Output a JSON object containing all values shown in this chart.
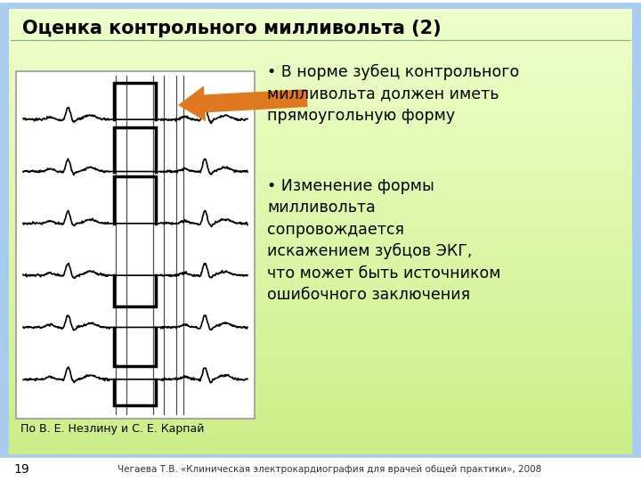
{
  "title": "Оценка контрольного милливольта (2)",
  "bullet1_text": "В норме зубец контрольного\nмилливольта должен иметь\nпрямоугольную форму",
  "bullet2_text": "Изменение формы\nмилливольта\nсопровождается\nискажением зубцов ЭКГ,\nчто может быть источником\nошибочного заключения",
  "caption": "По В. Е. Незлину и С. Е. Карпай",
  "footer": "Чегаева Т.В. «Клиническая электрокардиография для врачей общей практики», 2008",
  "page_number": "19",
  "outer_border_color": "#88bbdd",
  "outer_bg": "#aaccee",
  "inner_bg_top": "#ccee99",
  "inner_bg_bottom": "#eeffcc",
  "title_color": "#000000",
  "text_color": "#000000",
  "footer_bg": "#ffffff",
  "arrow_color": "#e07820",
  "image_box_bg": "#ffffff"
}
